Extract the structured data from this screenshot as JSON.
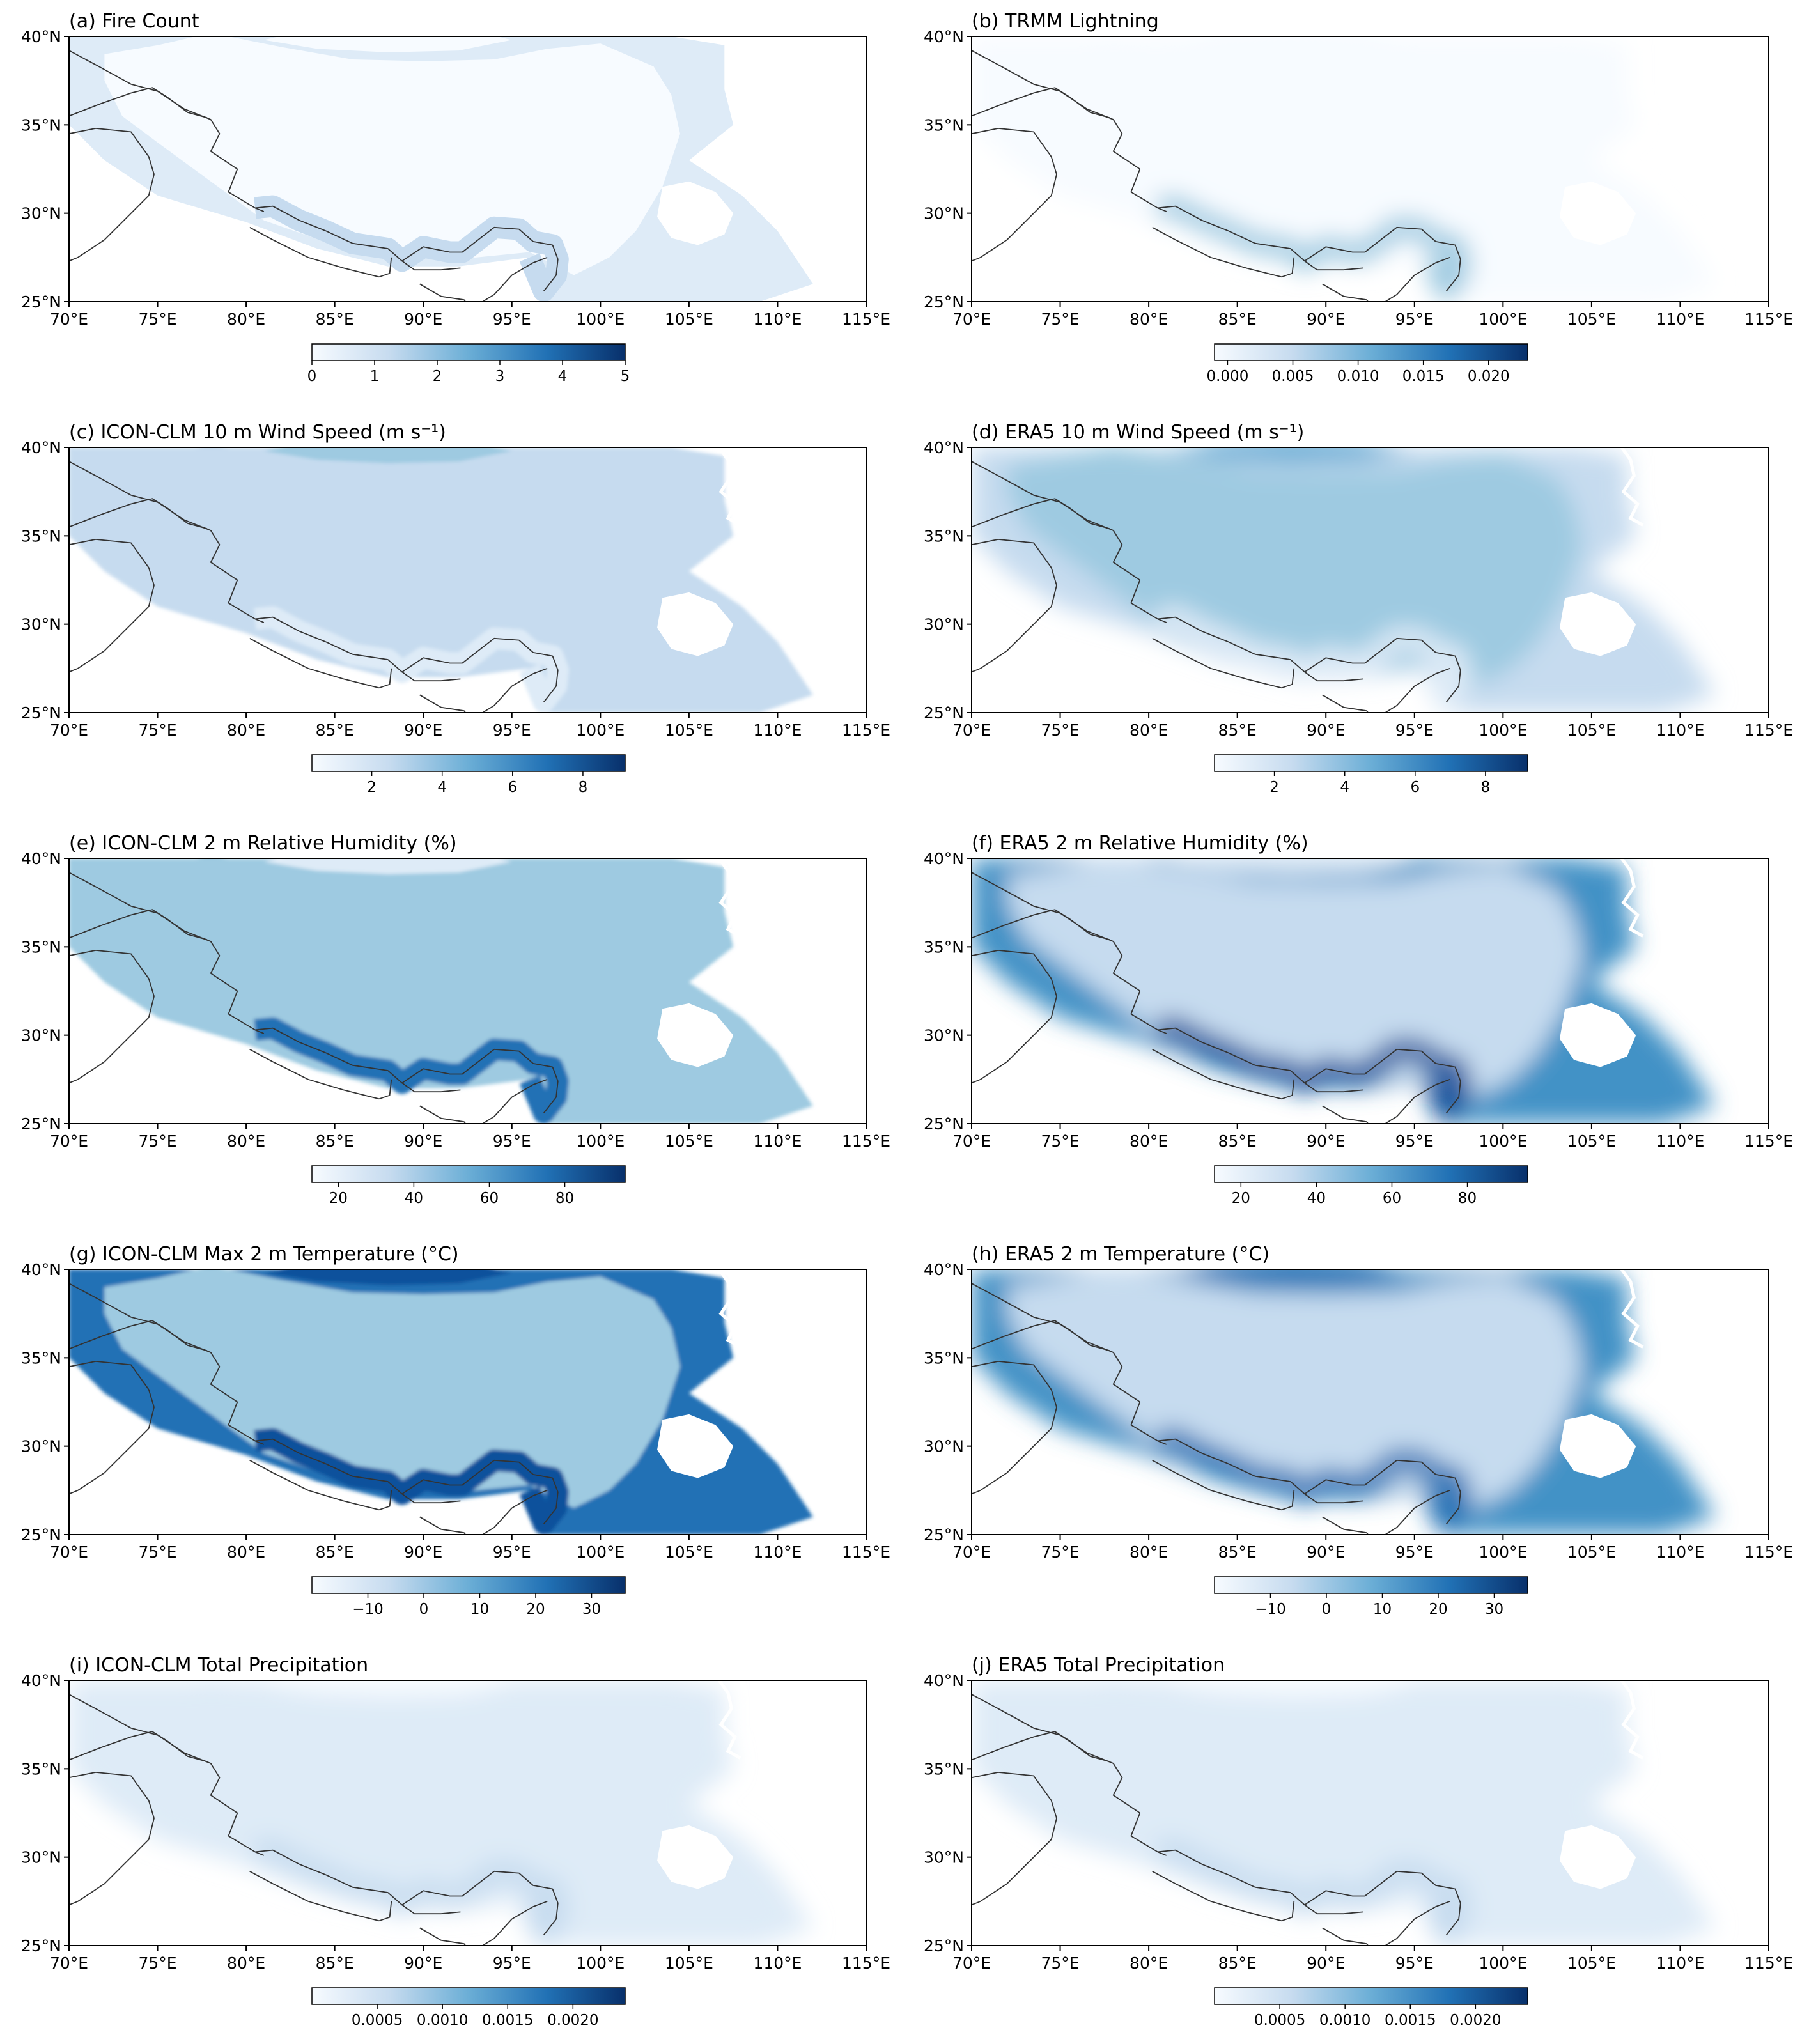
{
  "figure": {
    "lon_ticks": [
      "70°E",
      "75°E",
      "80°E",
      "85°E",
      "90°E",
      "95°E",
      "100°E",
      "105°E",
      "110°E",
      "115°E"
    ],
    "lat_ticks": [
      "40°N",
      "35°N",
      "30°N",
      "25°N"
    ],
    "lon_range": [
      70,
      115
    ],
    "lat_range": [
      25,
      40
    ],
    "colormap": "Blues",
    "colors": {
      "light": "#f7fbff",
      "mid": "#6baed6",
      "dark": "#08306b"
    }
  },
  "panels": [
    {
      "id": "a",
      "title": "(a) Fire Count",
      "cbar_range": [
        0,
        5
      ],
      "cbar_ticks": [
        "0",
        "1",
        "2",
        "3",
        "4",
        "5"
      ],
      "cbar_values": [
        0,
        1,
        2,
        3,
        4,
        5
      ],
      "field": "fire"
    },
    {
      "id": "b",
      "title": "(b) TRMM Lightning",
      "cbar_range": [
        -0.001,
        0.023
      ],
      "cbar_ticks": [
        "0.000",
        "0.005",
        "0.010",
        "0.015",
        "0.020"
      ],
      "cbar_values": [
        0,
        0.005,
        0.01,
        0.015,
        0.02
      ],
      "field": "lightning"
    },
    {
      "id": "c",
      "title": "(c) ICON-CLM 10 m Wind Speed (m s⁻¹)",
      "cbar_range": [
        0.3,
        9.2
      ],
      "cbar_ticks": [
        "2",
        "4",
        "6",
        "8"
      ],
      "cbar_values": [
        2,
        4,
        6,
        8
      ],
      "field": "wind_fine"
    },
    {
      "id": "d",
      "title": "(d) ERA5 10 m Wind Speed (m s⁻¹)",
      "cbar_range": [
        0.3,
        9.2
      ],
      "cbar_ticks": [
        "2",
        "4",
        "6",
        "8"
      ],
      "cbar_values": [
        2,
        4,
        6,
        8
      ],
      "field": "wind_smooth"
    },
    {
      "id": "e",
      "title": "(e) ICON-CLM 2 m Relative Humidity (%)",
      "cbar_range": [
        13,
        96
      ],
      "cbar_ticks": [
        "20",
        "40",
        "60",
        "80"
      ],
      "cbar_values": [
        20,
        40,
        60,
        80
      ],
      "field": "rh_fine"
    },
    {
      "id": "f",
      "title": "(f) ERA5 2 m Relative Humidity (%)",
      "cbar_range": [
        13,
        96
      ],
      "cbar_ticks": [
        "20",
        "40",
        "60",
        "80"
      ],
      "cbar_values": [
        20,
        40,
        60,
        80
      ],
      "field": "rh_smooth"
    },
    {
      "id": "g",
      "title": "(g) ICON-CLM Max 2 m Temperature (°C)",
      "cbar_range": [
        -20,
        36
      ],
      "cbar_ticks": [
        "−10",
        "0",
        "10",
        "20",
        "30"
      ],
      "cbar_values": [
        -10,
        0,
        10,
        20,
        30
      ],
      "field": "temp_fine"
    },
    {
      "id": "h",
      "title": "(h) ERA5 2 m Temperature (°C)",
      "cbar_range": [
        -20,
        36
      ],
      "cbar_ticks": [
        "−10",
        "0",
        "10",
        "20",
        "30"
      ],
      "cbar_values": [
        -10,
        0,
        10,
        20,
        30
      ],
      "field": "temp_smooth"
    },
    {
      "id": "i",
      "title": "(i) ICON-CLM Total Precipitation",
      "cbar_range": [
        0,
        0.0024
      ],
      "cbar_ticks": [
        "0.0005",
        "0.0010",
        "0.0015",
        "0.0020"
      ],
      "cbar_values": [
        0.0005,
        0.001,
        0.0015,
        0.002
      ],
      "field": "precip"
    },
    {
      "id": "j",
      "title": "(j) ERA5 Total Precipitation",
      "cbar_range": [
        0,
        0.0024
      ],
      "cbar_ticks": [
        "0.0005",
        "0.0010",
        "0.0015",
        "0.0020"
      ],
      "cbar_values": [
        0.0005,
        0.001,
        0.0015,
        0.002
      ],
      "field": "precip"
    }
  ]
}
